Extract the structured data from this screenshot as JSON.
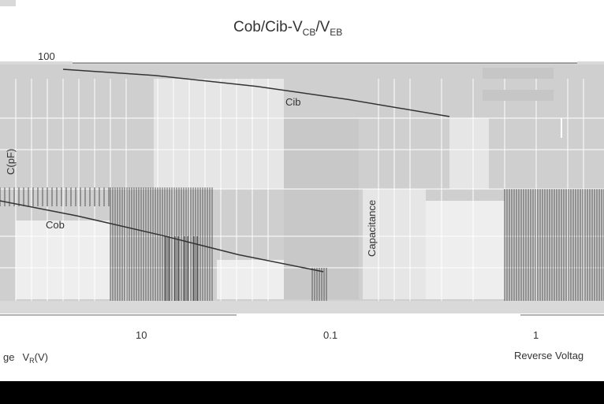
{
  "chart_data": {
    "type": "line",
    "title_main": "Cob/Cib-V",
    "title_sub1": "CB",
    "title_sep": "/V",
    "title_sub2": "EB",
    "y_top_label": "100",
    "ylabel": "C(pF)",
    "ylabel_right": "Capacitance",
    "x_tick_labels": [
      "10",
      "0.1",
      "1"
    ],
    "xlabel_left_prefix": "ge",
    "xlabel_left_v": "V",
    "xlabel_left_sub": "R",
    "xlabel_left_unit": "(V)",
    "xlabel_right": "Reverse Voltag",
    "annotations": {
      "cib": "Cib",
      "cob": "Cob"
    },
    "series": [
      {
        "name": "Cib",
        "x": [
          0.1,
          0.3,
          1,
          3,
          10
        ],
        "values": [
          100,
          90,
          75,
          60,
          45
        ]
      },
      {
        "name": "Cob",
        "x": [
          0.1,
          0.3,
          1,
          3,
          10
        ],
        "values": [
          20,
          16,
          12,
          9,
          7
        ]
      }
    ],
    "colors": {
      "line": "#333333",
      "grid": "#ffffff",
      "bg": "#d9d9d9"
    }
  }
}
